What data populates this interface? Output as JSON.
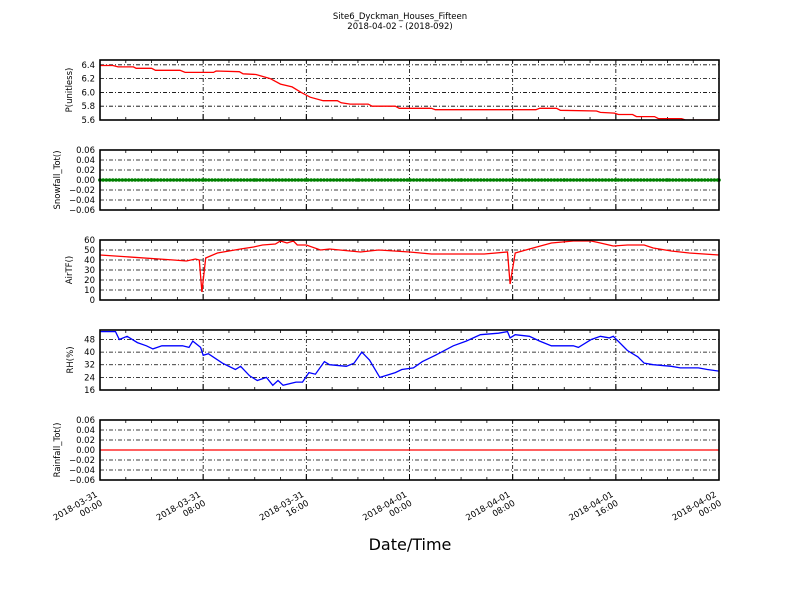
{
  "title": "Site6_Dyckman_Houses_Fifteen",
  "subtitle": "2018-04-02 - (2018-092)",
  "xlabel": "Date/Time",
  "x_ticks": [
    {
      "hours": 0,
      "line1": "2018-03-31",
      "line2": "00:00"
    },
    {
      "hours": 8,
      "line1": "2018-03-31",
      "line2": "08:00"
    },
    {
      "hours": 16,
      "line1": "2018-03-31",
      "line2": "16:00"
    },
    {
      "hours": 24,
      "line1": "2018-04-01",
      "line2": "00:00"
    },
    {
      "hours": 32,
      "line1": "2018-04-01",
      "line2": "08:00"
    },
    {
      "hours": 40,
      "line1": "2018-04-01",
      "line2": "16:00"
    },
    {
      "hours": 48,
      "line1": "2018-04-02",
      "line2": "00:00"
    }
  ],
  "chart_data": [
    {
      "type": "line",
      "ylabel": "P(unitless)",
      "color": "#ff0000",
      "marker": false,
      "xlim": [
        0,
        48
      ],
      "ylim": [
        5.6,
        6.47
      ],
      "yticks": [
        "6.4",
        "6.2",
        "6.0",
        "5.8",
        "5.6"
      ],
      "points": [
        [
          0,
          6.39
        ],
        [
          1.0,
          6.39
        ],
        [
          1.4,
          6.37
        ],
        [
          2.6,
          6.37
        ],
        [
          2.8,
          6.35
        ],
        [
          4.0,
          6.35
        ],
        [
          4.3,
          6.32
        ],
        [
          6.2,
          6.32
        ],
        [
          6.6,
          6.29
        ],
        [
          8.8,
          6.29
        ],
        [
          9.0,
          6.31
        ],
        [
          10.8,
          6.3
        ],
        [
          11.1,
          6.27
        ],
        [
          12.1,
          6.26
        ],
        [
          13.2,
          6.2
        ],
        [
          14.0,
          6.12
        ],
        [
          14.9,
          6.08
        ],
        [
          15.6,
          6.0
        ],
        [
          16.3,
          5.93
        ],
        [
          17.3,
          5.88
        ],
        [
          18.4,
          5.88
        ],
        [
          18.7,
          5.85
        ],
        [
          19.4,
          5.83
        ],
        [
          20.8,
          5.83
        ],
        [
          21.1,
          5.8
        ],
        [
          22.9,
          5.8
        ],
        [
          23.2,
          5.77
        ],
        [
          25.7,
          5.77
        ],
        [
          26.0,
          5.75
        ],
        [
          33.8,
          5.75
        ],
        [
          34.1,
          5.77
        ],
        [
          35.4,
          5.77
        ],
        [
          35.7,
          5.74
        ],
        [
          38.5,
          5.73
        ],
        [
          38.8,
          5.71
        ],
        [
          39.9,
          5.7
        ],
        [
          40.2,
          5.68
        ],
        [
          41.3,
          5.68
        ],
        [
          41.6,
          5.65
        ],
        [
          43.0,
          5.65
        ],
        [
          43.3,
          5.62
        ],
        [
          45.1,
          5.62
        ],
        [
          45.4,
          5.6
        ],
        [
          48,
          5.6
        ]
      ]
    },
    {
      "type": "line",
      "ylabel": "Snowfall_Tot()",
      "color": "#008000",
      "marker": true,
      "xlim": [
        0,
        48
      ],
      "ylim": [
        -0.06,
        0.06
      ],
      "yticks": [
        "0.06",
        "0.04",
        "0.02",
        "0.00",
        "−0.02",
        "−0.04",
        "−0.06"
      ],
      "points": [
        [
          0,
          0
        ],
        [
          4,
          0
        ],
        [
          8,
          0
        ],
        [
          12,
          0
        ],
        [
          16,
          0
        ],
        [
          20,
          0
        ],
        [
          24,
          0
        ],
        [
          28,
          0
        ],
        [
          32,
          0
        ],
        [
          36,
          0
        ],
        [
          40,
          0
        ],
        [
          44,
          0
        ],
        [
          48,
          0
        ]
      ]
    },
    {
      "type": "line",
      "ylabel": "AirTF()",
      "color": "#ff0000",
      "marker": false,
      "xlim": [
        0,
        48
      ],
      "ylim": [
        0,
        60
      ],
      "yticks": [
        "60",
        "50",
        "40",
        "30",
        "20",
        "10",
        "0"
      ],
      "points": [
        [
          0,
          45
        ],
        [
          5.7,
          40
        ],
        [
          6.7,
          39
        ],
        [
          7.4,
          41
        ],
        [
          7.7,
          40
        ],
        [
          7.9,
          8
        ],
        [
          8.2,
          42
        ],
        [
          9.1,
          47
        ],
        [
          10.9,
          51
        ],
        [
          11.9,
          53
        ],
        [
          12.6,
          55
        ],
        [
          13.6,
          56
        ],
        [
          14,
          59
        ],
        [
          14.5,
          57
        ],
        [
          15,
          59
        ],
        [
          15.3,
          55
        ],
        [
          16,
          55
        ],
        [
          17.1,
          50
        ],
        [
          17.8,
          51
        ],
        [
          20.2,
          48
        ],
        [
          21.6,
          50
        ],
        [
          24,
          48
        ],
        [
          25.7,
          46
        ],
        [
          29.8,
          46
        ],
        [
          31.6,
          48
        ],
        [
          31.8,
          16
        ],
        [
          32.2,
          47
        ],
        [
          33.3,
          51
        ],
        [
          35,
          57
        ],
        [
          36.7,
          59
        ],
        [
          38.1,
          59
        ],
        [
          38.8,
          57
        ],
        [
          39.8,
          54
        ],
        [
          40.9,
          55
        ],
        [
          42.2,
          55
        ],
        [
          42.9,
          52
        ],
        [
          44.3,
          49
        ],
        [
          45.7,
          47
        ],
        [
          48,
          45
        ]
      ]
    },
    {
      "type": "line",
      "ylabel": "RH(%)",
      "color": "#0000ff",
      "marker": false,
      "xlim": [
        0,
        48
      ],
      "ylim": [
        16,
        54
      ],
      "yticks": [
        "48",
        "40",
        "32",
        "24",
        "16"
      ],
      "points": [
        [
          0,
          53
        ],
        [
          1.2,
          53
        ],
        [
          1.5,
          48
        ],
        [
          2.1,
          50
        ],
        [
          2.9,
          46
        ],
        [
          3.6,
          44
        ],
        [
          4.1,
          42
        ],
        [
          4.8,
          44
        ],
        [
          6.4,
          44
        ],
        [
          6.9,
          43
        ],
        [
          7.2,
          47
        ],
        [
          7.8,
          43
        ],
        [
          8.0,
          38
        ],
        [
          8.4,
          39
        ],
        [
          9.5,
          33
        ],
        [
          10.5,
          29
        ],
        [
          10.9,
          31
        ],
        [
          11.6,
          25
        ],
        [
          12.2,
          22
        ],
        [
          12.9,
          24
        ],
        [
          13.4,
          19
        ],
        [
          13.8,
          22
        ],
        [
          14.2,
          19
        ],
        [
          15.2,
          21
        ],
        [
          15.7,
          21
        ],
        [
          16.2,
          27
        ],
        [
          16.7,
          26
        ],
        [
          17.4,
          34
        ],
        [
          17.8,
          32
        ],
        [
          19.1,
          31
        ],
        [
          19.7,
          33
        ],
        [
          20.3,
          40
        ],
        [
          20.9,
          35
        ],
        [
          21.7,
          24
        ],
        [
          22.9,
          27
        ],
        [
          23.4,
          29
        ],
        [
          24.3,
          30
        ],
        [
          25,
          34
        ],
        [
          26,
          38
        ],
        [
          27.4,
          44
        ],
        [
          28.4,
          47
        ],
        [
          29.5,
          51
        ],
        [
          30.9,
          52
        ],
        [
          31.6,
          53
        ],
        [
          31.8,
          49
        ],
        [
          32.2,
          51
        ],
        [
          33.3,
          50
        ],
        [
          34.1,
          47
        ],
        [
          35,
          44
        ],
        [
          36.7,
          44
        ],
        [
          37.1,
          43
        ],
        [
          38.1,
          48
        ],
        [
          38.8,
          50
        ],
        [
          39.5,
          49
        ],
        [
          39.8,
          50
        ],
        [
          40.9,
          41
        ],
        [
          41.7,
          37
        ],
        [
          42.2,
          33
        ],
        [
          42.9,
          32
        ],
        [
          44.3,
          31
        ],
        [
          45,
          30
        ],
        [
          46.4,
          30
        ],
        [
          47.1,
          29
        ],
        [
          48,
          28
        ]
      ]
    },
    {
      "type": "line",
      "ylabel": "Rainfall_Tot()",
      "color": "#ff0000",
      "marker": false,
      "xlim": [
        0,
        48
      ],
      "ylim": [
        -0.06,
        0.06
      ],
      "yticks": [
        "0.06",
        "0.04",
        "0.02",
        "0.00",
        "−0.02",
        "−0.04",
        "−0.06"
      ],
      "points": [
        [
          0,
          0
        ],
        [
          48,
          0
        ]
      ]
    }
  ]
}
